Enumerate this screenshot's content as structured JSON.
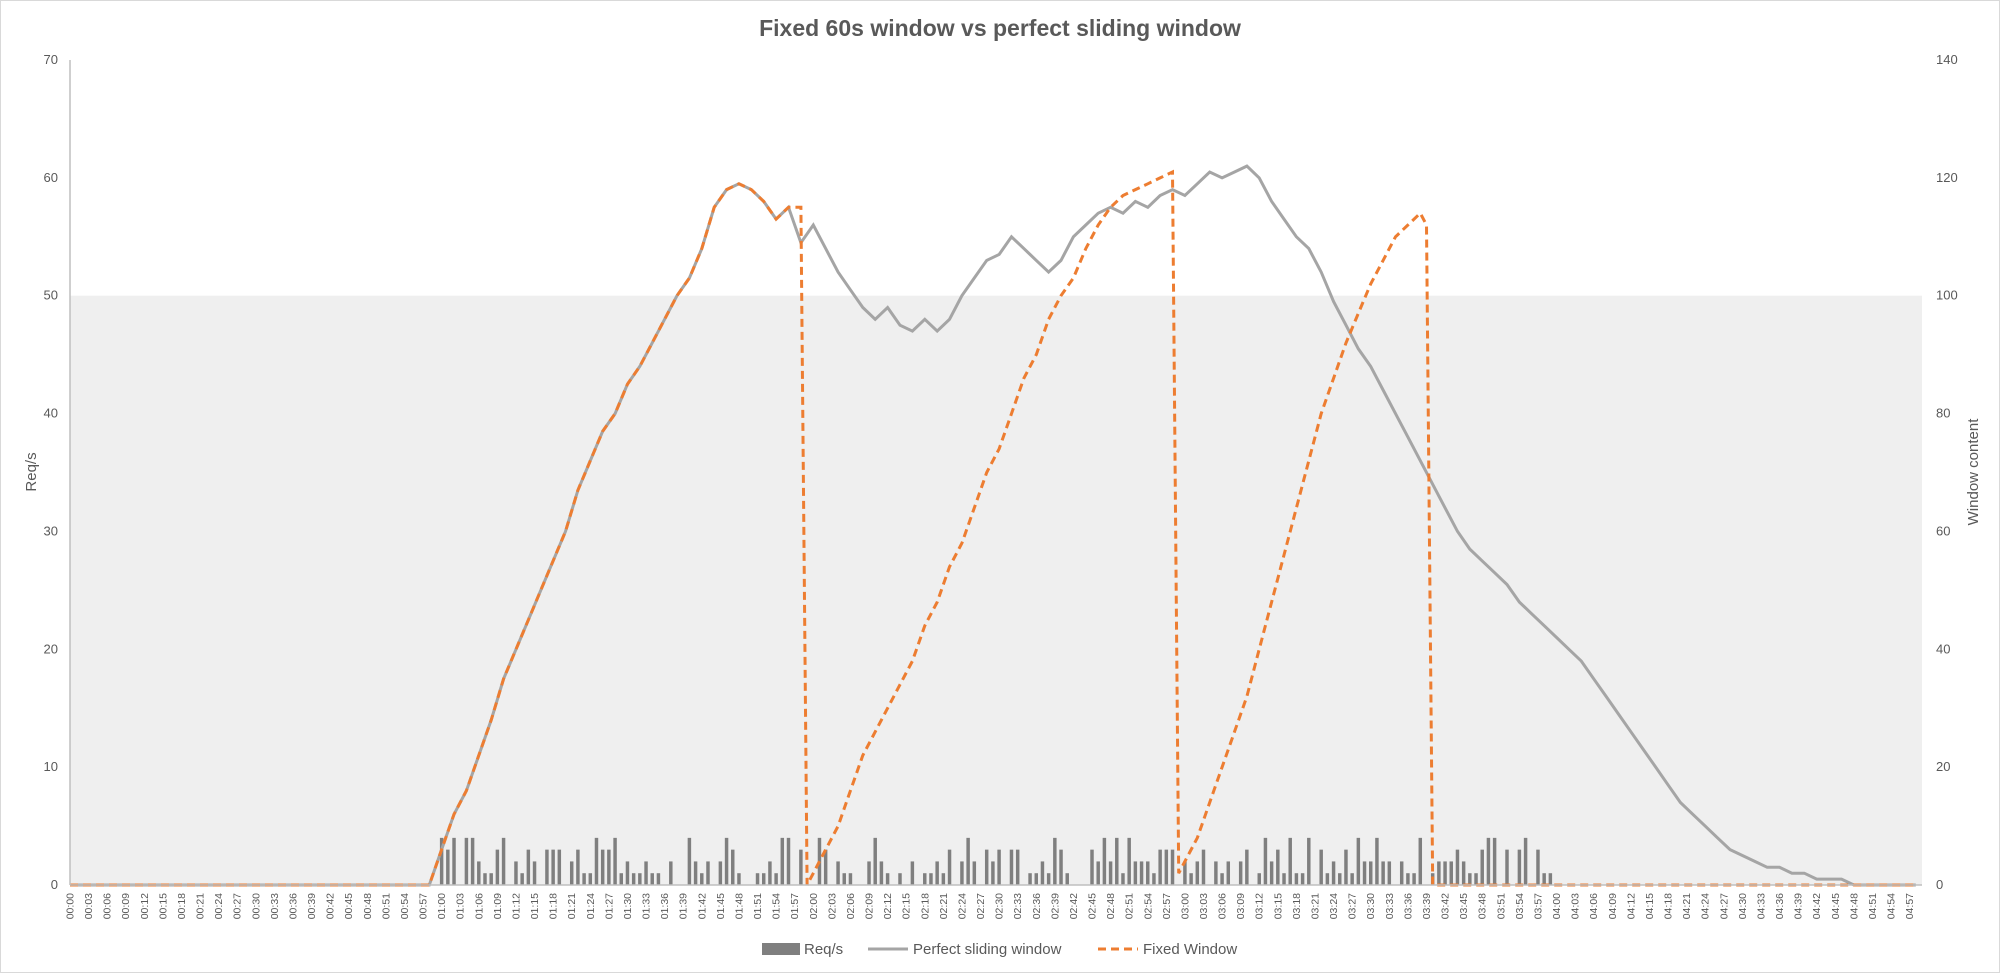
{
  "chart_data": {
    "type": "bar+line",
    "title": "Fixed 60s window vs perfect sliding window",
    "ylabel_left": "Req/s",
    "ylabel_right": "Window content",
    "ylim_left": [
      0,
      70
    ],
    "ylim_right": [
      0,
      140
    ],
    "yticks_left": [
      0,
      10,
      20,
      30,
      40,
      50,
      60,
      70
    ],
    "yticks_right": [
      0,
      20,
      40,
      60,
      80,
      100,
      120,
      140
    ],
    "shaded_band_right": [
      0,
      100
    ],
    "x_start_seconds": 0,
    "x_end_seconds": 299,
    "x_tick_every_seconds": 3,
    "x_format": "mm:ss",
    "req_per_second": [
      0,
      0,
      0,
      0,
      0,
      0,
      0,
      0,
      0,
      0,
      0,
      0,
      0,
      0,
      0,
      0,
      0,
      0,
      0,
      0,
      0,
      0,
      0,
      0,
      0,
      0,
      0,
      0,
      0,
      0,
      0,
      0,
      0,
      0,
      0,
      0,
      0,
      0,
      0,
      0,
      0,
      0,
      0,
      0,
      0,
      0,
      0,
      0,
      0,
      0,
      0,
      0,
      0,
      0,
      0,
      0,
      0,
      0,
      0,
      0,
      4,
      3,
      4,
      0,
      4,
      4,
      2,
      1,
      1,
      3,
      4,
      0,
      2,
      1,
      3,
      2,
      0,
      3,
      3,
      3,
      0,
      2,
      3,
      1,
      1,
      4,
      3,
      3,
      4,
      1,
      2,
      1,
      1,
      2,
      1,
      1,
      0,
      2,
      0,
      0,
      4,
      2,
      1,
      2,
      0,
      2,
      4,
      3,
      1,
      0,
      0,
      1,
      1,
      2,
      1,
      4,
      4,
      0,
      3,
      0,
      0,
      4,
      3,
      0,
      2,
      1,
      1,
      0,
      0,
      2,
      4,
      2,
      1,
      0,
      1,
      0,
      2,
      0,
      1,
      1,
      2,
      1,
      3,
      0,
      2,
      4,
      2,
      0,
      3,
      2,
      3,
      0,
      3,
      3,
      0,
      1,
      1,
      2,
      1,
      4,
      3,
      1,
      0,
      0,
      0,
      3,
      2,
      4,
      2,
      4,
      1,
      4,
      2,
      2,
      2,
      1,
      3,
      3,
      3,
      0,
      2,
      1,
      2,
      3,
      0,
      2,
      1,
      2,
      0,
      2,
      3,
      0,
      1,
      4,
      2,
      3,
      1,
      4,
      1,
      1,
      4,
      0,
      3,
      1,
      2,
      1,
      3,
      1,
      4,
      2,
      2,
      4,
      2,
      2,
      0,
      2,
      1,
      1,
      4,
      0,
      1,
      2,
      2,
      2,
      3,
      2,
      1,
      1,
      3,
      4,
      4,
      0,
      3,
      0,
      3,
      4,
      0,
      3,
      1,
      1,
      0,
      0,
      0,
      0,
      0,
      0,
      0,
      0,
      0,
      0,
      0,
      0,
      0,
      0,
      0,
      0,
      0,
      0,
      0,
      0,
      0,
      0,
      0,
      0,
      0,
      0,
      0,
      0,
      0,
      0,
      0,
      0,
      0,
      0,
      0,
      0,
      0,
      0,
      0,
      0,
      0,
      0,
      0,
      0,
      0,
      0,
      0,
      0,
      0,
      0,
      0,
      0,
      0,
      0,
      0,
      0
    ],
    "series": [
      {
        "name": "Perfect sliding window",
        "axis": "right",
        "points": [
          [
            0,
            0
          ],
          [
            58,
            0
          ],
          [
            60,
            6
          ],
          [
            62,
            12
          ],
          [
            64,
            16
          ],
          [
            66,
            22
          ],
          [
            68,
            28
          ],
          [
            70,
            35
          ],
          [
            72,
            40
          ],
          [
            74,
            45
          ],
          [
            76,
            50
          ],
          [
            78,
            55
          ],
          [
            80,
            60
          ],
          [
            82,
            67
          ],
          [
            84,
            72
          ],
          [
            86,
            77
          ],
          [
            88,
            80
          ],
          [
            90,
            85
          ],
          [
            92,
            88
          ],
          [
            94,
            92
          ],
          [
            96,
            96
          ],
          [
            98,
            100
          ],
          [
            100,
            103
          ],
          [
            102,
            108
          ],
          [
            104,
            115
          ],
          [
            106,
            118
          ],
          [
            108,
            119
          ],
          [
            110,
            118
          ],
          [
            112,
            116
          ],
          [
            114,
            113
          ],
          [
            116,
            115
          ],
          [
            118,
            109
          ],
          [
            120,
            112
          ],
          [
            122,
            108
          ],
          [
            124,
            104
          ],
          [
            126,
            101
          ],
          [
            128,
            98
          ],
          [
            130,
            96
          ],
          [
            132,
            98
          ],
          [
            134,
            95
          ],
          [
            136,
            94
          ],
          [
            138,
            96
          ],
          [
            140,
            94
          ],
          [
            142,
            96
          ],
          [
            144,
            100
          ],
          [
            146,
            103
          ],
          [
            148,
            106
          ],
          [
            150,
            107
          ],
          [
            152,
            110
          ],
          [
            154,
            108
          ],
          [
            156,
            106
          ],
          [
            158,
            104
          ],
          [
            160,
            106
          ],
          [
            162,
            110
          ],
          [
            164,
            112
          ],
          [
            166,
            114
          ],
          [
            168,
            115
          ],
          [
            170,
            114
          ],
          [
            172,
            116
          ],
          [
            174,
            115
          ],
          [
            176,
            117
          ],
          [
            178,
            118
          ],
          [
            180,
            117
          ],
          [
            182,
            119
          ],
          [
            184,
            121
          ],
          [
            186,
            120
          ],
          [
            188,
            121
          ],
          [
            190,
            122
          ],
          [
            192,
            120
          ],
          [
            194,
            116
          ],
          [
            196,
            113
          ],
          [
            198,
            110
          ],
          [
            200,
            108
          ],
          [
            202,
            104
          ],
          [
            204,
            99
          ],
          [
            206,
            95
          ],
          [
            208,
            91
          ],
          [
            210,
            88
          ],
          [
            212,
            84
          ],
          [
            214,
            80
          ],
          [
            216,
            76
          ],
          [
            218,
            72
          ],
          [
            220,
            68
          ],
          [
            222,
            64
          ],
          [
            224,
            60
          ],
          [
            226,
            57
          ],
          [
            228,
            55
          ],
          [
            230,
            53
          ],
          [
            232,
            51
          ],
          [
            234,
            48
          ],
          [
            236,
            46
          ],
          [
            238,
            44
          ],
          [
            240,
            42
          ],
          [
            242,
            40
          ],
          [
            244,
            38
          ],
          [
            246,
            35
          ],
          [
            248,
            32
          ],
          [
            250,
            29
          ],
          [
            252,
            26
          ],
          [
            254,
            23
          ],
          [
            256,
            20
          ],
          [
            258,
            17
          ],
          [
            260,
            14
          ],
          [
            262,
            12
          ],
          [
            264,
            10
          ],
          [
            266,
            8
          ],
          [
            268,
            6
          ],
          [
            270,
            5
          ],
          [
            272,
            4
          ],
          [
            274,
            3
          ],
          [
            276,
            3
          ],
          [
            278,
            2
          ],
          [
            280,
            2
          ],
          [
            282,
            1
          ],
          [
            284,
            1
          ],
          [
            286,
            1
          ],
          [
            288,
            0
          ],
          [
            290,
            0
          ],
          [
            292,
            0
          ],
          [
            294,
            0
          ],
          [
            296,
            0
          ],
          [
            298,
            0
          ]
        ]
      },
      {
        "name": "Fixed Window",
        "axis": "right",
        "points": [
          [
            0,
            0
          ],
          [
            58,
            0
          ],
          [
            60,
            6
          ],
          [
            62,
            12
          ],
          [
            64,
            16
          ],
          [
            66,
            22
          ],
          [
            68,
            28
          ],
          [
            70,
            35
          ],
          [
            72,
            40
          ],
          [
            74,
            45
          ],
          [
            76,
            50
          ],
          [
            78,
            55
          ],
          [
            80,
            60
          ],
          [
            82,
            67
          ],
          [
            84,
            72
          ],
          [
            86,
            77
          ],
          [
            88,
            80
          ],
          [
            90,
            85
          ],
          [
            92,
            88
          ],
          [
            94,
            92
          ],
          [
            96,
            96
          ],
          [
            98,
            100
          ],
          [
            100,
            103
          ],
          [
            102,
            108
          ],
          [
            104,
            115
          ],
          [
            106,
            118
          ],
          [
            108,
            119
          ],
          [
            110,
            118
          ],
          [
            112,
            116
          ],
          [
            114,
            113
          ],
          [
            116,
            115
          ],
          [
            118,
            115
          ],
          [
            119,
            0
          ],
          [
            122,
            6
          ],
          [
            124,
            10
          ],
          [
            126,
            16
          ],
          [
            128,
            22
          ],
          [
            130,
            26
          ],
          [
            132,
            30
          ],
          [
            134,
            34
          ],
          [
            136,
            38
          ],
          [
            138,
            44
          ],
          [
            140,
            48
          ],
          [
            142,
            54
          ],
          [
            144,
            58
          ],
          [
            146,
            64
          ],
          [
            148,
            70
          ],
          [
            150,
            74
          ],
          [
            152,
            80
          ],
          [
            154,
            86
          ],
          [
            156,
            90
          ],
          [
            158,
            96
          ],
          [
            160,
            100
          ],
          [
            162,
            103
          ],
          [
            164,
            108
          ],
          [
            166,
            112
          ],
          [
            168,
            115
          ],
          [
            170,
            117
          ],
          [
            172,
            118
          ],
          [
            174,
            119
          ],
          [
            176,
            120
          ],
          [
            178,
            121
          ],
          [
            179,
            2
          ],
          [
            182,
            8
          ],
          [
            184,
            14
          ],
          [
            186,
            20
          ],
          [
            188,
            26
          ],
          [
            190,
            32
          ],
          [
            192,
            40
          ],
          [
            194,
            48
          ],
          [
            196,
            56
          ],
          [
            198,
            64
          ],
          [
            200,
            72
          ],
          [
            202,
            80
          ],
          [
            204,
            86
          ],
          [
            206,
            92
          ],
          [
            208,
            97
          ],
          [
            210,
            102
          ],
          [
            212,
            106
          ],
          [
            214,
            110
          ],
          [
            216,
            112
          ],
          [
            218,
            114
          ],
          [
            219,
            112
          ],
          [
            220,
            0
          ],
          [
            298,
            0
          ]
        ]
      }
    ],
    "legend": [
      {
        "label": "Req/s",
        "type": "bar"
      },
      {
        "label": "Perfect sliding window",
        "type": "line"
      },
      {
        "label": "Fixed Window",
        "type": "dashed-line"
      }
    ],
    "colors": {
      "bars": "#7f7f7f",
      "sliding": "#a5a5a5",
      "fixed": "#ed7d31",
      "band": "#efefef",
      "text": "#595959",
      "axis": "#bfbfbf"
    },
    "legend_position": "bottom-center",
    "grid": false
  }
}
